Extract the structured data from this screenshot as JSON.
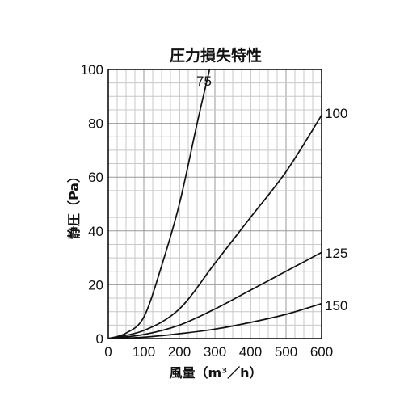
{
  "chart_data": {
    "type": "line",
    "title": "圧力損失特性",
    "xlabel": "風量（m³／h）",
    "ylabel": "静圧（Pa）",
    "xlim": [
      0,
      600
    ],
    "ylim": [
      0,
      100
    ],
    "x_ticks": [
      "0",
      "100",
      "200",
      "300",
      "400",
      "500",
      "600"
    ],
    "y_ticks": [
      "0",
      "20",
      "40",
      "60",
      "80",
      "100"
    ],
    "x_tick_values": [
      0,
      100,
      200,
      300,
      400,
      500,
      600
    ],
    "y_tick_values": [
      0,
      20,
      40,
      60,
      80,
      100
    ],
    "grid": true,
    "series": [
      {
        "name": "75",
        "x": [
          0,
          50,
          100,
          150,
          200,
          250,
          285
        ],
        "y": [
          0,
          2,
          8,
          27,
          50,
          80,
          100
        ]
      },
      {
        "name": "100",
        "x": [
          0,
          100,
          200,
          300,
          400,
          500,
          600
        ],
        "y": [
          0,
          3,
          11,
          28,
          45,
          62,
          83
        ]
      },
      {
        "name": "125",
        "x": [
          0,
          100,
          200,
          300,
          400,
          500,
          600
        ],
        "y": [
          0,
          1.5,
          5,
          11,
          18,
          25,
          32
        ]
      },
      {
        "name": "150",
        "x": [
          0,
          100,
          200,
          300,
          400,
          500,
          600
        ],
        "y": [
          0,
          0.5,
          1.8,
          3.5,
          6,
          9,
          13
        ]
      }
    ]
  }
}
